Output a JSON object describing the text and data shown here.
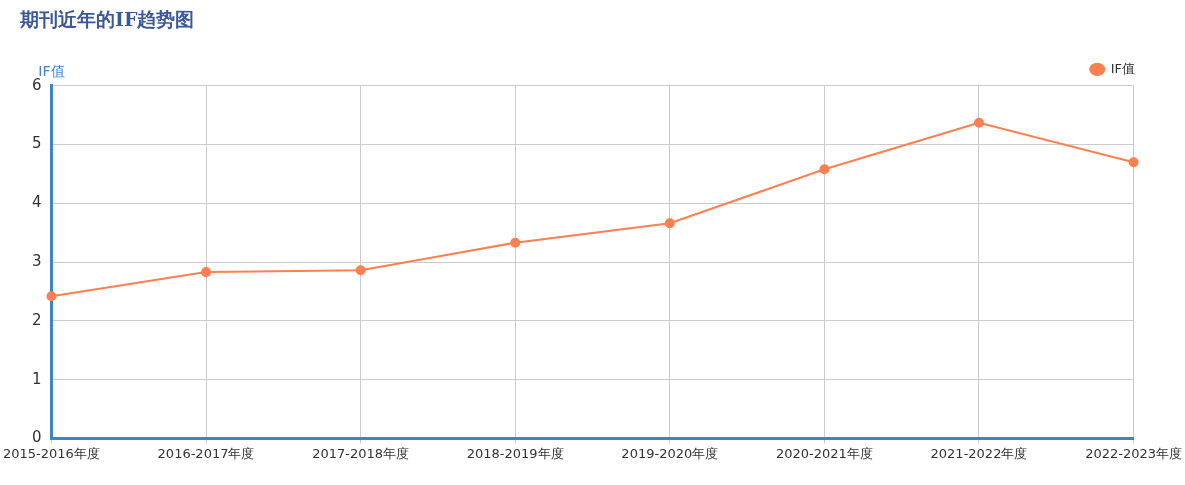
{
  "chart_data": {
    "type": "line",
    "title": "期刊近年的IF趋势图",
    "ylabel": "IF值",
    "categories": [
      "2015-2016年度",
      "2016-2017年度",
      "2017-2018年度",
      "2018-2019年度",
      "2019-2020年度",
      "2020-2021年度",
      "2021-2022年度",
      "2022-2023年度"
    ],
    "series": [
      {
        "name": "IF值",
        "color": "#ff7f50",
        "values": [
          2.42,
          2.83,
          2.86,
          3.33,
          3.66,
          4.58,
          5.37,
          4.7
        ]
      }
    ],
    "ylim": [
      0,
      6
    ],
    "yticks": [
      0,
      1,
      2,
      3,
      4,
      5,
      6
    ],
    "grid": true,
    "legend": "top right",
    "marker": "circle",
    "line_style": "solid"
  }
}
